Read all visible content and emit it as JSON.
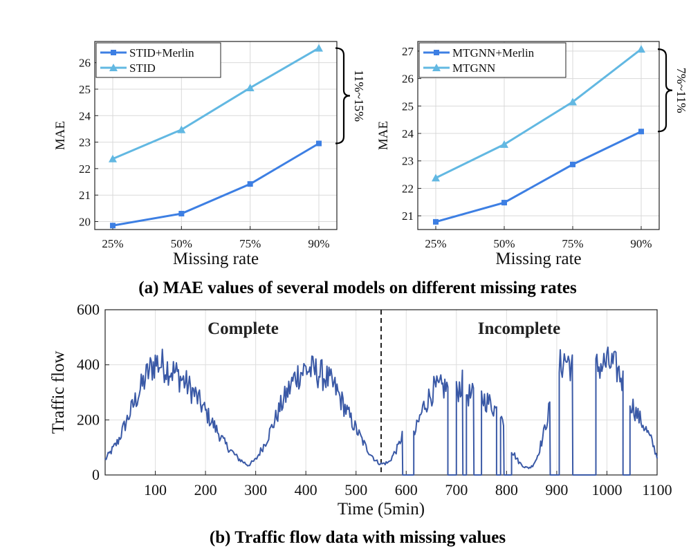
{
  "chart_data": [
    {
      "type": "line",
      "panel": "a-left",
      "categories": [
        "25%",
        "50%",
        "75%",
        "90%"
      ],
      "series": [
        {
          "name": "STID+Merlin",
          "values": [
            19.85,
            20.3,
            21.42,
            22.95
          ],
          "color": "#3d7fe3",
          "marker": "square"
        },
        {
          "name": "STID",
          "values": [
            22.37,
            23.47,
            25.05,
            26.55
          ],
          "color": "#62b8e2",
          "marker": "triangle"
        }
      ],
      "xlabel": "Missing rate",
      "ylabel": "MAE",
      "ylim": [
        19.7,
        26.8
      ],
      "yticks": [
        20,
        21,
        22,
        23,
        24,
        25,
        26
      ],
      "grid": true,
      "legend": "top-left",
      "annotation": "11%~15%"
    },
    {
      "type": "line",
      "panel": "a-right",
      "categories": [
        "25%",
        "50%",
        "75%",
        "90%"
      ],
      "series": [
        {
          "name": "MTGNN+Merlin",
          "values": [
            20.78,
            21.48,
            22.87,
            24.07
          ],
          "color": "#3d7fe3",
          "marker": "square"
        },
        {
          "name": "MTGNN",
          "values": [
            22.38,
            23.6,
            25.15,
            27.07
          ],
          "color": "#62b8e2",
          "marker": "triangle"
        }
      ],
      "xlabel": "Missing rate",
      "ylabel": "MAE",
      "ylim": [
        20.5,
        27.35
      ],
      "yticks": [
        21,
        22,
        23,
        24,
        25,
        26,
        27
      ],
      "grid": true,
      "legend": "top-left",
      "annotation": "7%~11%"
    },
    {
      "type": "line",
      "panel": "b",
      "series": [
        {
          "name": "Traffic flow",
          "color": "#3a59a6",
          "x_start": 0,
          "x_step": 2,
          "shape_points": [
            [
              0,
              55
            ],
            [
              25,
              120
            ],
            [
              60,
              270
            ],
            [
              85,
              370
            ],
            [
              100,
              410
            ],
            [
              120,
              395
            ],
            [
              140,
              370
            ],
            [
              160,
              335
            ],
            [
              180,
              290
            ],
            [
              210,
              200
            ],
            [
              240,
              110
            ],
            [
              265,
              60
            ],
            [
              285,
              35
            ],
            [
              300,
              55
            ],
            [
              320,
              120
            ],
            [
              350,
              250
            ],
            [
              380,
              360
            ],
            [
              400,
              385
            ],
            [
              420,
              375
            ],
            [
              440,
              355
            ],
            [
              460,
              310
            ],
            [
              490,
              200
            ],
            [
              520,
              100
            ],
            [
              540,
              50
            ],
            [
              550,
              40
            ],
            [
              565,
              45
            ],
            [
              585,
              105
            ],
            [
              592,
              150
            ]
          ],
          "missing_intervals": [
            [
              593,
              615
            ],
            [
              683,
              700
            ],
            [
              713,
              720
            ],
            [
              735,
              750
            ],
            [
              780,
              788
            ],
            [
              795,
              810
            ],
            [
              887,
              905
            ],
            [
              932,
              978
            ],
            [
              1032,
              1046
            ]
          ],
          "present_segments": [
            [
              615,
              683,
              [
                [
                  615,
                  140
                ],
                [
                  635,
                  250
                ],
                [
                  655,
                  310
                ],
                [
                  670,
                  315
                ],
                [
                  683,
                  320
                ]
              ]
            ],
            [
              700,
              713,
              [
                [
                  700,
                  300
                ],
                [
                  706,
                  320
                ],
                [
                  713,
                  330
                ]
              ]
            ],
            [
              720,
              735,
              [
                [
                  720,
                  300
                ],
                [
                  728,
                  285
                ],
                [
                  735,
                  290
                ]
              ]
            ],
            [
              750,
              780,
              [
                [
                  750,
                  280
                ],
                [
                  760,
                  270
                ],
                [
                  770,
                  255
                ],
                [
                  780,
                  235
                ]
              ]
            ],
            [
              788,
              795,
              [
                [
                  788,
                  240
                ],
                [
                  795,
                  200
                ]
              ]
            ],
            [
              810,
              887,
              [
                [
                  810,
                  90
                ],
                [
                  825,
                  45
                ],
                [
                  840,
                  25
                ],
                [
                  850,
                  30
                ],
                [
                  860,
                  60
                ],
                [
                  873,
                  140
                ],
                [
                  880,
                  200
                ],
                [
                  887,
                  250
                ]
              ]
            ],
            [
              905,
              932,
              [
                [
                  905,
                  390
                ],
                [
                  915,
                  420
                ],
                [
                  925,
                  410
                ],
                [
                  932,
                  385
                ]
              ]
            ],
            [
              978,
              1032,
              [
                [
                  978,
                  390
                ],
                [
                  990,
                  400
                ],
                [
                  1000,
                  405
                ],
                [
                  1010,
                  400
                ],
                [
                  1020,
                  385
                ],
                [
                  1032,
                  340
                ]
              ]
            ],
            [
              1046,
              1100,
              [
                [
                  1046,
                  270
                ],
                [
                  1060,
                  220
                ],
                [
                  1075,
                  175
                ],
                [
                  1090,
                  120
                ],
                [
                  1100,
                  65
                ]
              ]
            ]
          ]
        }
      ],
      "xlabel": "Time (5min)",
      "ylabel": "Traffic flow",
      "xlim": [
        0,
        1100
      ],
      "ylim": [
        0,
        600
      ],
      "xticks": [
        100,
        200,
        300,
        400,
        500,
        600,
        700,
        800,
        900,
        1000,
        1100
      ],
      "yticks": [
        0,
        200,
        400,
        600
      ],
      "divider_x": 550,
      "regions": [
        "Complete",
        "Incomplete"
      ],
      "grid": true
    }
  ],
  "captions": {
    "a": "(a) MAE values of several models on different missing rates",
    "b": "(b) Traffic flow data with missing values"
  }
}
